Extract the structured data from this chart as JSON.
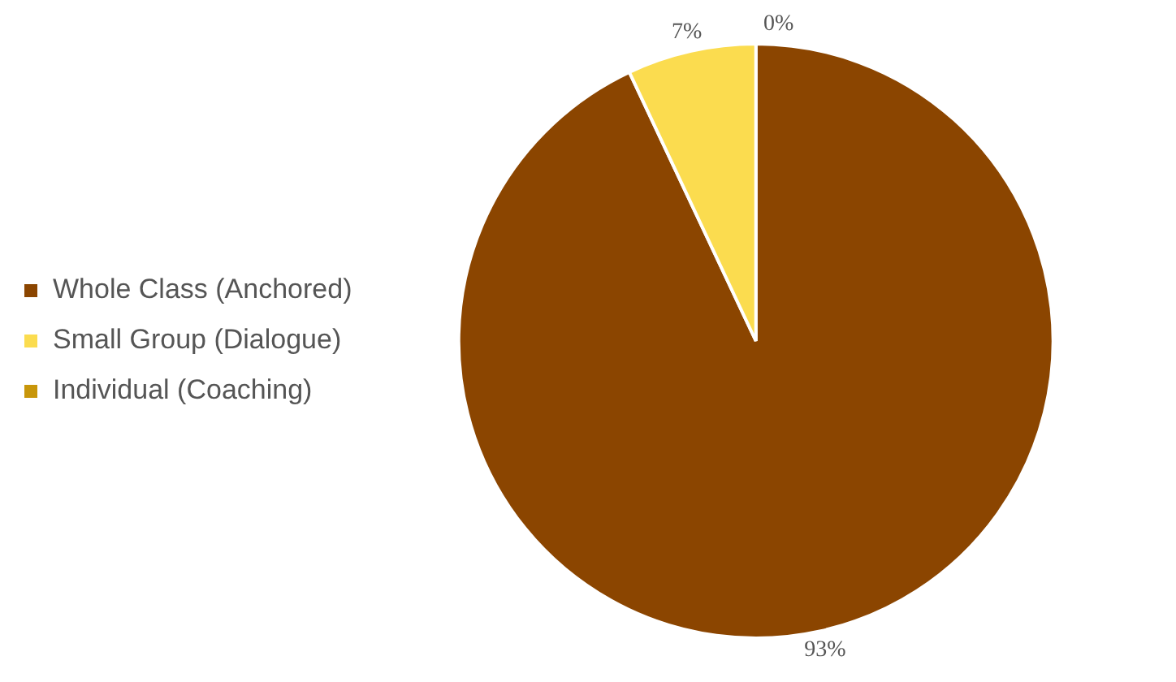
{
  "chart_data": {
    "type": "pie",
    "categories": [
      "Whole Class (Anchored)",
      "Small Group (Dialogue)",
      "Individual (Coaching)"
    ],
    "values": [
      93,
      7,
      0
    ],
    "colors": [
      "#8b4500",
      "#fbdc4f",
      "#c8960a"
    ],
    "value_labels": [
      "93%",
      "7%",
      "0%"
    ],
    "legend": "left"
  }
}
